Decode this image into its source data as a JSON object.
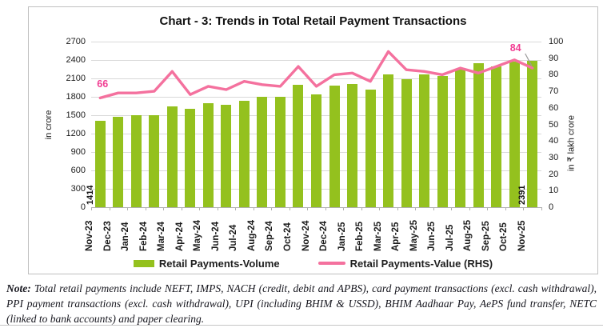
{
  "title": "Chart - 3: Trends in Total Retail Payment Transactions",
  "chart_data": {
    "type": "combo",
    "categories": [
      "Nov-23",
      "Dec-23",
      "Jan-24",
      "Feb-24",
      "Mar-24",
      "Apr-24",
      "May-24",
      "Jun-24",
      "Jul-24",
      "Aug-24",
      "Sep-24",
      "Oct-24",
      "Nov-24",
      "Dec-24",
      "Jan-25",
      "Feb-25",
      "Mar-25",
      "Apr-25",
      "May-25",
      "Jun-25",
      "Jul-25",
      "Aug-25",
      "Sep-25",
      "Oct-25",
      "Nov-25"
    ],
    "series": [
      {
        "name": "Retail Payments-Volume",
        "type": "bar",
        "axis": "left",
        "color": "#94c11e",
        "values": [
          1414,
          1470,
          1505,
          1500,
          1650,
          1600,
          1690,
          1670,
          1730,
          1795,
          1795,
          1995,
          1840,
          1980,
          2015,
          1915,
          2165,
          2090,
          2165,
          2140,
          2240,
          2350,
          2290,
          2380,
          2391
        ]
      },
      {
        "name": "Retail Payments-Value (RHS)",
        "type": "line",
        "axis": "right",
        "color": "#f4719e",
        "values": [
          66,
          69,
          69,
          70,
          82,
          68,
          73,
          71,
          76,
          74,
          73,
          85,
          73,
          80,
          81,
          76,
          94,
          83,
          82,
          80,
          84,
          81,
          85,
          89,
          84
        ]
      }
    ],
    "left_axis": {
      "label": "in crore",
      "min": 0,
      "max": 2700,
      "step": 300
    },
    "right_axis": {
      "label": "in ₹ lakh crore",
      "min": 0,
      "max": 100,
      "step": 10
    },
    "grid": true,
    "legend_position": "bottom",
    "annotations": {
      "first_bar_label": "1414",
      "last_bar_label": "2391",
      "first_line_label": "66",
      "last_line_label": "84"
    }
  },
  "note": {
    "label": "Note:",
    "text": "Total retail payments include NEFT, IMPS, NACH (credit, debit and APBS), card payment transactions (excl. cash withdrawal), PPI payment transactions (excl. cash withdrawal), UPI (including BHIM & USSD), BHIM Aadhaar Pay, AePS fund transfer, NETC (linked to bank accounts) and paper clearing."
  },
  "colors": {
    "bar": "#94c11e",
    "line": "#f4719e",
    "line_label": "#f13d92",
    "grid": "#d9d9d9",
    "border": "#c0c0c0"
  }
}
